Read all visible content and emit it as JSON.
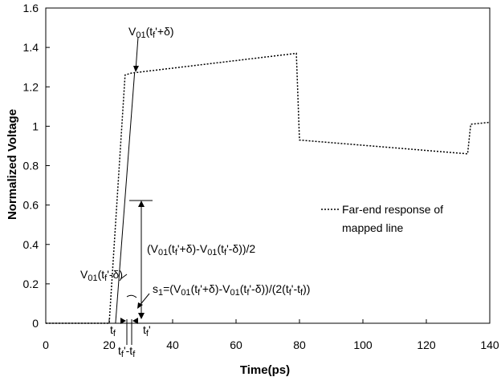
{
  "chart_data": {
    "type": "line",
    "title": "",
    "xlabel": "Time(ps)",
    "ylabel": "Normalized Voltage",
    "xlim": [
      0,
      140
    ],
    "ylim": [
      0,
      1.6
    ],
    "x_ticks": [
      "0",
      "20",
      "40",
      "60",
      "80",
      "100",
      "120",
      "140"
    ],
    "y_ticks": [
      "0",
      "0.2",
      "0.4",
      "0.6",
      "0.8",
      "1",
      "1.2",
      "1.4",
      "1.6"
    ],
    "grid": false,
    "legend_position": "right",
    "series": [
      {
        "name": "Far-end response of mapped line",
        "style": "dotted",
        "x": [
          0,
          20,
          25,
          27,
          79,
          80,
          133,
          134,
          140
        ],
        "y": [
          0,
          0,
          1.26,
          1.27,
          1.37,
          0.93,
          0.86,
          1.01,
          1.02
        ]
      }
    ],
    "tangent_line": {
      "x": [
        22,
        28
      ],
      "y": [
        0,
        1.27
      ]
    },
    "annotations": {
      "v_top": "V01(tf'+δ)",
      "v_half": "(V01(tf'+δ)-V01(tf'-δ))/2",
      "v_low": "V01(tf'-δ)",
      "slope": "s1=(V01(tf'+δ)-V01(tf'-δ))/(2(tf'-tf))",
      "tf": "tf",
      "tf_prime": "tf'",
      "tf_diff": "tf'-tf"
    },
    "colors": {
      "line": "#000000",
      "background": "#ffffff"
    }
  }
}
